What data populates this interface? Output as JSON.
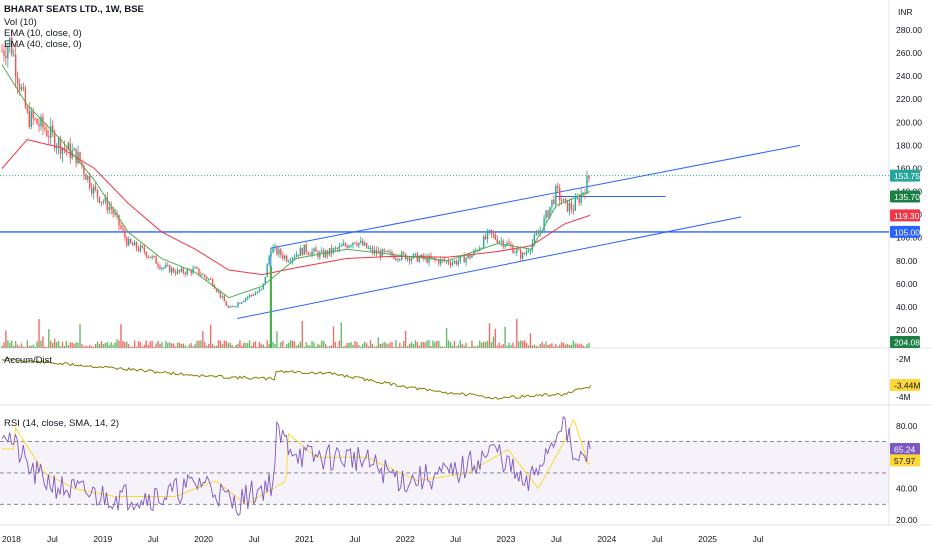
{
  "header": {
    "symbol_line": "BHARAT SEATS LTD., 1W, BSE",
    "vol_label": "Vol (10)",
    "ema_fast_label": "EMA (10, close, 0)",
    "ema_slow_label": "EMA (40, close, 0)",
    "currency": "INR"
  },
  "accum_panel": {
    "label": "Accum/Dist",
    "value_tag": "-3.44M",
    "ticks": [
      "-2M",
      "-4M"
    ]
  },
  "rsi_panel": {
    "label": "RSI (14, close, SMA, 14, 2)",
    "rsi_tag": "65.24",
    "sma_tag": "57.97",
    "ticks": [
      "80.00",
      "60.00",
      "40.00",
      "20.00"
    ]
  },
  "price_tags": {
    "last": "153.75",
    "upper_hline": "135.70",
    "ema": "119.30",
    "support": "105.00",
    "volume": "204.085K"
  },
  "colors": {
    "up": "#26a69a",
    "down": "#ef5350",
    "ema_fast": "#4caf50",
    "ema_slow": "#f23645",
    "trend": "#2962ff",
    "accum": "#808000",
    "rsi": "#7e57c2",
    "rsi_sma": "#fdd835",
    "vol_up": "#4caf50",
    "vol_down": "#ef5350"
  },
  "chart_data": {
    "type": "candlestick",
    "interval": "1W",
    "price_axis_ticks": [
      "280.00",
      "260.00",
      "240.00",
      "220.00",
      "200.00",
      "180.00",
      "160.00",
      "140.00",
      "120.00",
      "100.00",
      "80.00",
      "60.00",
      "40.00",
      "20.00"
    ],
    "ylim": [
      20,
      290
    ],
    "time_axis_labels": [
      "2018",
      "Jul",
      "2019",
      "Jul",
      "2020",
      "Jul",
      "2021",
      "Jul",
      "2022",
      "Jul",
      "2023",
      "Jul",
      "2024",
      "Jul",
      "2025",
      "Jul"
    ],
    "price_path": [
      [
        "2018-01",
        262
      ],
      [
        "2018-02",
        270
      ],
      [
        "2018-04",
        205
      ],
      [
        "2018-06",
        195
      ],
      [
        "2018-08",
        180
      ],
      [
        "2018-10",
        170
      ],
      [
        "2018-12",
        140
      ],
      [
        "2019-02",
        125
      ],
      [
        "2019-04",
        95
      ],
      [
        "2019-06",
        88
      ],
      [
        "2019-08",
        75
      ],
      [
        "2019-10",
        70
      ],
      [
        "2019-12",
        72
      ],
      [
        "2020-02",
        62
      ],
      [
        "2020-04",
        38
      ],
      [
        "2020-06",
        48
      ],
      [
        "2020-08",
        55
      ],
      [
        "2020-09",
        91
      ],
      [
        "2020-11",
        82
      ],
      [
        "2021-01",
        90
      ],
      [
        "2021-03",
        85
      ],
      [
        "2021-05",
        90
      ],
      [
        "2021-07",
        98
      ],
      [
        "2021-09",
        88
      ],
      [
        "2021-11",
        85
      ],
      [
        "2022-01",
        84
      ],
      [
        "2022-03",
        82
      ],
      [
        "2022-05",
        80
      ],
      [
        "2022-07",
        79
      ],
      [
        "2022-09",
        85
      ],
      [
        "2022-11",
        103
      ],
      [
        "2023-01",
        95
      ],
      [
        "2023-03",
        84
      ],
      [
        "2023-05",
        105
      ],
      [
        "2023-07",
        140
      ],
      [
        "2023-08",
        128
      ],
      [
        "2023-09",
        126
      ],
      [
        "2023-10",
        138
      ],
      [
        "2023-11",
        153.75
      ]
    ],
    "ema_10_path": [
      [
        "2018-01",
        250
      ],
      [
        "2018-04",
        215
      ],
      [
        "2018-08",
        185
      ],
      [
        "2018-12",
        150
      ],
      [
        "2019-04",
        105
      ],
      [
        "2019-08",
        82
      ],
      [
        "2019-12",
        70
      ],
      [
        "2020-04",
        48
      ],
      [
        "2020-08",
        58
      ],
      [
        "2020-12",
        82
      ],
      [
        "2021-06",
        90
      ],
      [
        "2021-12",
        85
      ],
      [
        "2022-06",
        80
      ],
      [
        "2022-12",
        95
      ],
      [
        "2023-04",
        90
      ],
      [
        "2023-07",
        128
      ],
      [
        "2023-11",
        140
      ]
    ],
    "ema_40_path": [
      [
        "2018-01",
        160
      ],
      [
        "2018-04",
        185
      ],
      [
        "2018-08",
        178
      ],
      [
        "2018-12",
        160
      ],
      [
        "2019-04",
        130
      ],
      [
        "2019-08",
        105
      ],
      [
        "2019-12",
        90
      ],
      [
        "2020-04",
        72
      ],
      [
        "2020-08",
        68
      ],
      [
        "2020-12",
        74
      ],
      [
        "2021-06",
        82
      ],
      [
        "2021-12",
        84
      ],
      [
        "2022-06",
        83
      ],
      [
        "2022-12",
        88
      ],
      [
        "2023-04",
        93
      ],
      [
        "2023-08",
        112
      ],
      [
        "2023-11",
        119.3
      ]
    ],
    "horizontal_lines": [
      135.7,
      105.0,
      153.75
    ],
    "channel_upper": [
      [
        "2020-09",
        91
      ],
      [
        "2025-12",
        180
      ]
    ],
    "channel_lower": [
      [
        "2020-05",
        30
      ],
      [
        "2025-05",
        118
      ]
    ],
    "volume_label": "204.085K",
    "accum_dist_last": "-3.44M",
    "rsi_last": 65.24,
    "rsi_sma_last": 57.97,
    "rsi_bands": [
      70,
      50,
      30
    ]
  }
}
